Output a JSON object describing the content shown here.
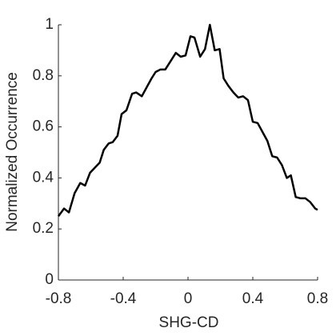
{
  "chart_data": {
    "type": "line",
    "xlabel": "SHG-CD",
    "ylabel": "Normalized Occurrence",
    "x": [
      -0.8,
      -0.765,
      -0.735,
      -0.7,
      -0.665,
      -0.635,
      -0.605,
      -0.575,
      -0.545,
      -0.52,
      -0.49,
      -0.465,
      -0.435,
      -0.41,
      -0.38,
      -0.345,
      -0.32,
      -0.285,
      -0.255,
      -0.225,
      -0.2,
      -0.17,
      -0.14,
      -0.105,
      -0.075,
      -0.045,
      -0.015,
      0.015,
      0.04,
      0.075,
      0.105,
      0.135,
      0.165,
      0.195,
      0.22,
      0.25,
      0.28,
      0.31,
      0.34,
      0.37,
      0.4,
      0.43,
      0.46,
      0.49,
      0.52,
      0.55,
      0.58,
      0.61,
      0.635,
      0.665,
      0.695,
      0.725,
      0.755,
      0.785,
      0.8
    ],
    "series": [
      {
        "name": "SHG-CD",
        "color": "#000000",
        "values": [
          0.25,
          0.28,
          0.265,
          0.34,
          0.38,
          0.37,
          0.42,
          0.44,
          0.46,
          0.51,
          0.535,
          0.54,
          0.565,
          0.65,
          0.665,
          0.73,
          0.735,
          0.72,
          0.755,
          0.79,
          0.815,
          0.825,
          0.825,
          0.86,
          0.89,
          0.875,
          0.88,
          0.955,
          0.95,
          0.875,
          0.905,
          1.0,
          0.9,
          0.905,
          0.79,
          0.76,
          0.735,
          0.715,
          0.72,
          0.705,
          0.62,
          0.615,
          0.58,
          0.545,
          0.485,
          0.48,
          0.45,
          0.4,
          0.41,
          0.325,
          0.32,
          0.32,
          0.305,
          0.28,
          0.275
        ]
      }
    ],
    "xlim": [
      -0.8,
      0.8
    ],
    "xticks": [
      -0.8,
      -0.4,
      0,
      0.4,
      0.8
    ],
    "ylim": [
      0,
      1
    ],
    "yticks": [
      0,
      0.2,
      0.4,
      0.6,
      0.8,
      1
    ]
  }
}
